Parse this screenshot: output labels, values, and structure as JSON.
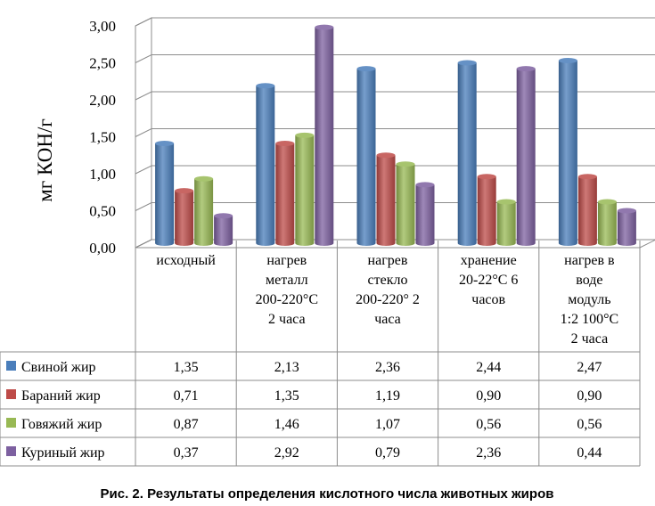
{
  "chart_data": {
    "type": "bar",
    "title": "",
    "xlabel": "",
    "ylabel": "мг КОН/г",
    "ylim": [
      0,
      3
    ],
    "yticks": [
      "0,00",
      "0,50",
      "1,00",
      "1,50",
      "2,00",
      "2,50",
      "3,00"
    ],
    "categories": [
      [
        "исходный"
      ],
      [
        "нагрев",
        "металл",
        "200-220°С",
        "2 часа"
      ],
      [
        "нагрев",
        "стекло",
        "200-220° 2",
        "часа"
      ],
      [
        "хранение",
        "20-22°С 6",
        "часов"
      ],
      [
        "нагрев в",
        "воде",
        "модуль",
        "1:2 100°С",
        "2 часа"
      ]
    ],
    "series": [
      {
        "name": "Свиной жир",
        "color": "#4a7ebb",
        "values": [
          1.35,
          2.13,
          2.36,
          2.44,
          2.47
        ],
        "labels": [
          "1,35",
          "2,13",
          "2,36",
          "2,44",
          "2,47"
        ]
      },
      {
        "name": "Бараний жир",
        "color": "#be4b48",
        "values": [
          0.71,
          1.35,
          1.19,
          0.9,
          0.9
        ],
        "labels": [
          "0,71",
          "1,35",
          "1,19",
          "0,90",
          "0,90"
        ]
      },
      {
        "name": "Говяжий жир",
        "color": "#98b954",
        "values": [
          0.87,
          1.46,
          1.07,
          0.56,
          0.56
        ],
        "labels": [
          "0,87",
          "1,46",
          "1,07",
          "0,56",
          "0,56"
        ]
      },
      {
        "name": "Куриный жир",
        "color": "#7d60a0",
        "values": [
          0.37,
          2.92,
          0.79,
          2.36,
          0.44
        ],
        "labels": [
          "0,37",
          "2,92",
          "0,79",
          "2,36",
          "0,44"
        ]
      }
    ],
    "has_data_table": true,
    "grid": true
  },
  "caption": "Рис. 2. Результаты определения кислотного числа животных жиров"
}
